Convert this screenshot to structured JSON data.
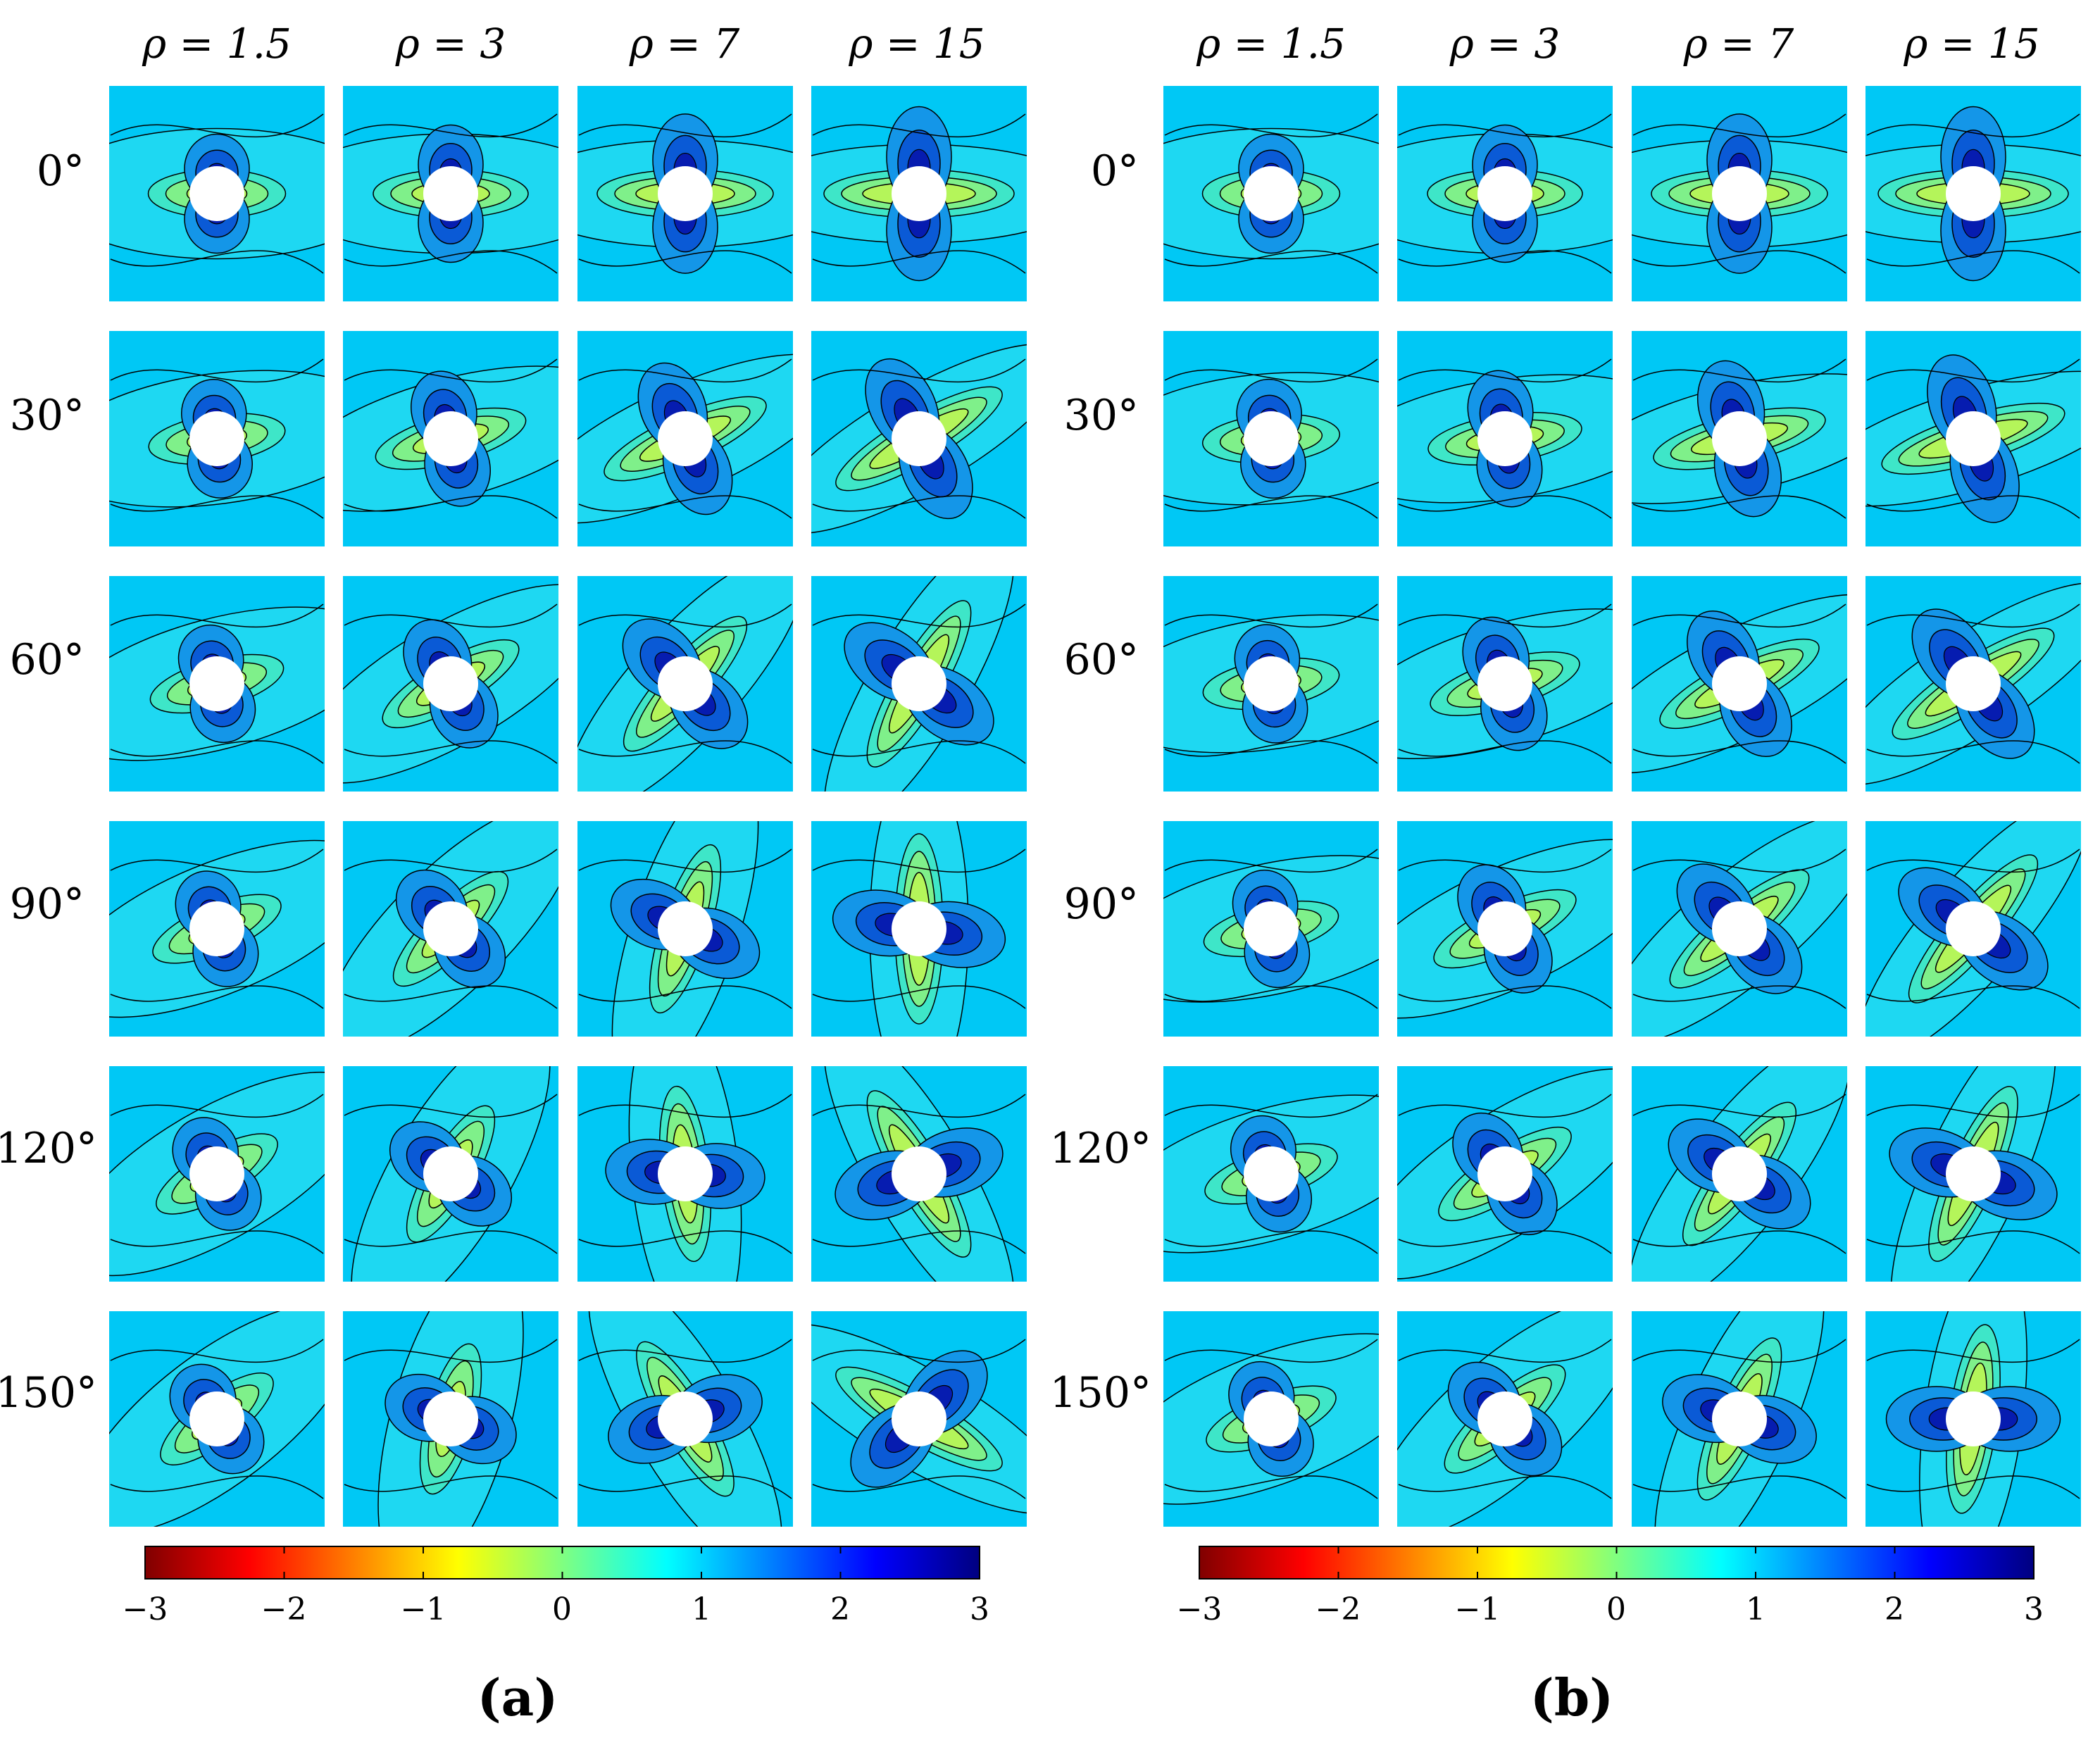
{
  "chart_data": [
    {
      "type": "heatmap",
      "panel": "(a)",
      "columns": [
        "ρ = 1.5",
        "ρ = 3",
        "ρ = 7",
        "ρ = 15"
      ],
      "rows": [
        "0°",
        "30°",
        "60°",
        "90°",
        "120°",
        "150°"
      ],
      "colorbar": {
        "range": [
          -3,
          3
        ],
        "ticks": [
          "−3",
          "−2",
          "−1",
          "0",
          "1",
          "2",
          "3"
        ],
        "colormap": "jet (reversed)"
      }
    },
    {
      "type": "heatmap",
      "panel": "(b)",
      "columns": [
        "ρ = 1.5",
        "ρ = 3",
        "ρ = 7",
        "ρ = 15"
      ],
      "rows": [
        "0°",
        "30°",
        "60°",
        "90°",
        "120°",
        "150°"
      ],
      "colorbar": {
        "range": [
          -3,
          3
        ],
        "ticks": [
          "−3",
          "−2",
          "−1",
          "0",
          "1",
          "2",
          "3"
        ],
        "colormap": "jet (reversed)"
      }
    }
  ],
  "colors": {
    "background_field": "#00c8f5",
    "far_field": "#1ed8f2",
    "lobe_1": "#1496e8",
    "lobe_2": "#0a5ad6",
    "lobe_3": "#061cb0",
    "wake_1": "#3ee6c8",
    "wake_2": "#7ff08a",
    "wake_3": "#b4f55a",
    "hole": "#ffffff"
  }
}
